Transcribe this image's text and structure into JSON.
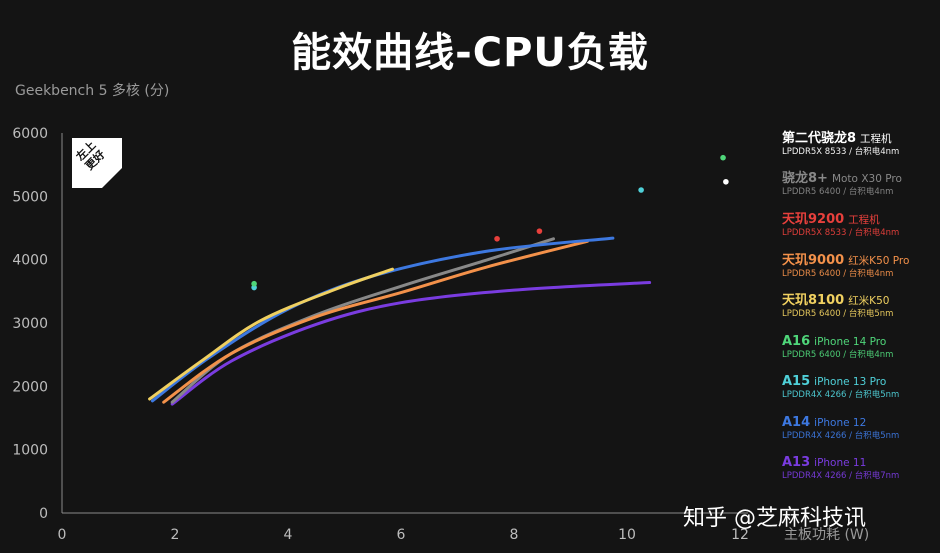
{
  "title": "能效曲线-CPU负载",
  "watermark": "知乎 @芝麻科技讯",
  "badge": {
    "line1": "左上",
    "line2": "更好"
  },
  "chart_data": {
    "type": "line",
    "ylabel": "Geekbench 5 多核 (分)",
    "xlabel": "主板功耗 (W)",
    "xlim": [
      0,
      12
    ],
    "ylim": [
      0,
      6000
    ],
    "xticks": [
      "0",
      "2",
      "4",
      "6",
      "8",
      "10",
      "12"
    ],
    "yticks": [
      "0",
      "1000",
      "2000",
      "3000",
      "4000",
      "5000",
      "6000"
    ],
    "grid": false,
    "legend_position": "right",
    "series": [
      {
        "name": "第二代骁龙8",
        "model": "工程机",
        "memory": "LPDDR5X 8533 / 台积电4nm",
        "color": "#ffffff",
        "points": [
          [
            11.75,
            5230
          ]
        ]
      },
      {
        "name": "骁龙8+",
        "model": "Moto X30 Pro",
        "memory": "LPDDR5 6400 / 台积电4nm",
        "color": "#888888",
        "points": [
          [
            1.95,
            1750
          ],
          [
            3.0,
            2520
          ],
          [
            4.5,
            3130
          ],
          [
            6.0,
            3580
          ],
          [
            7.5,
            3990
          ],
          [
            8.7,
            4330
          ]
        ]
      },
      {
        "name": "天玑9200",
        "model": "工程机",
        "memory": "LPDDR5X 8533 / 台积电4nm",
        "color": "#e8403c",
        "points": [
          [
            7.7,
            4330
          ],
          [
            8.45,
            4450
          ]
        ]
      },
      {
        "name": "天玑9000",
        "model": "红米K50 Pro",
        "memory": "LPDDR5 6400 / 台积电4nm",
        "color": "#f3914a",
        "points": [
          [
            1.8,
            1750
          ],
          [
            3.0,
            2520
          ],
          [
            4.5,
            3100
          ],
          [
            6.0,
            3480
          ],
          [
            7.5,
            3880
          ],
          [
            9.3,
            4290
          ]
        ]
      },
      {
        "name": "天玑8100",
        "model": "红米K50",
        "memory": "LPDDR5 6400 / 台积电5nm",
        "color": "#f0d060",
        "points": [
          [
            1.55,
            1800
          ],
          [
            2.5,
            2420
          ],
          [
            3.5,
            3030
          ],
          [
            4.8,
            3520
          ],
          [
            5.85,
            3850
          ]
        ]
      },
      {
        "name": "A16",
        "model": "iPhone 14 Pro",
        "memory": "LPDDR5 6400 / 台积电4nm",
        "color": "#4fd67a",
        "points": [
          [
            3.4,
            3620
          ],
          [
            11.7,
            5610
          ]
        ]
      },
      {
        "name": "A15",
        "model": "iPhone 13 Pro",
        "memory": "LPDDR4X 4266 / 台积电5nm",
        "color": "#4fd0d8",
        "points": [
          [
            3.4,
            3560
          ],
          [
            10.25,
            5100
          ]
        ]
      },
      {
        "name": "A14",
        "model": "iPhone 12",
        "memory": "LPDDR4X 4266 / 台积电5nm",
        "color": "#3d78e0",
        "points": [
          [
            1.6,
            1770
          ],
          [
            2.6,
            2450
          ],
          [
            4.0,
            3220
          ],
          [
            5.5,
            3740
          ],
          [
            7.5,
            4130
          ],
          [
            9.75,
            4340
          ]
        ]
      },
      {
        "name": "A13",
        "model": "iPhone 11",
        "memory": "LPDDR4X 4266 / 台积电7nm",
        "color": "#7a3ce0",
        "points": [
          [
            1.95,
            1720
          ],
          [
            3.0,
            2400
          ],
          [
            4.5,
            2980
          ],
          [
            6.0,
            3320
          ],
          [
            8.0,
            3520
          ],
          [
            10.4,
            3640
          ]
        ]
      }
    ]
  }
}
